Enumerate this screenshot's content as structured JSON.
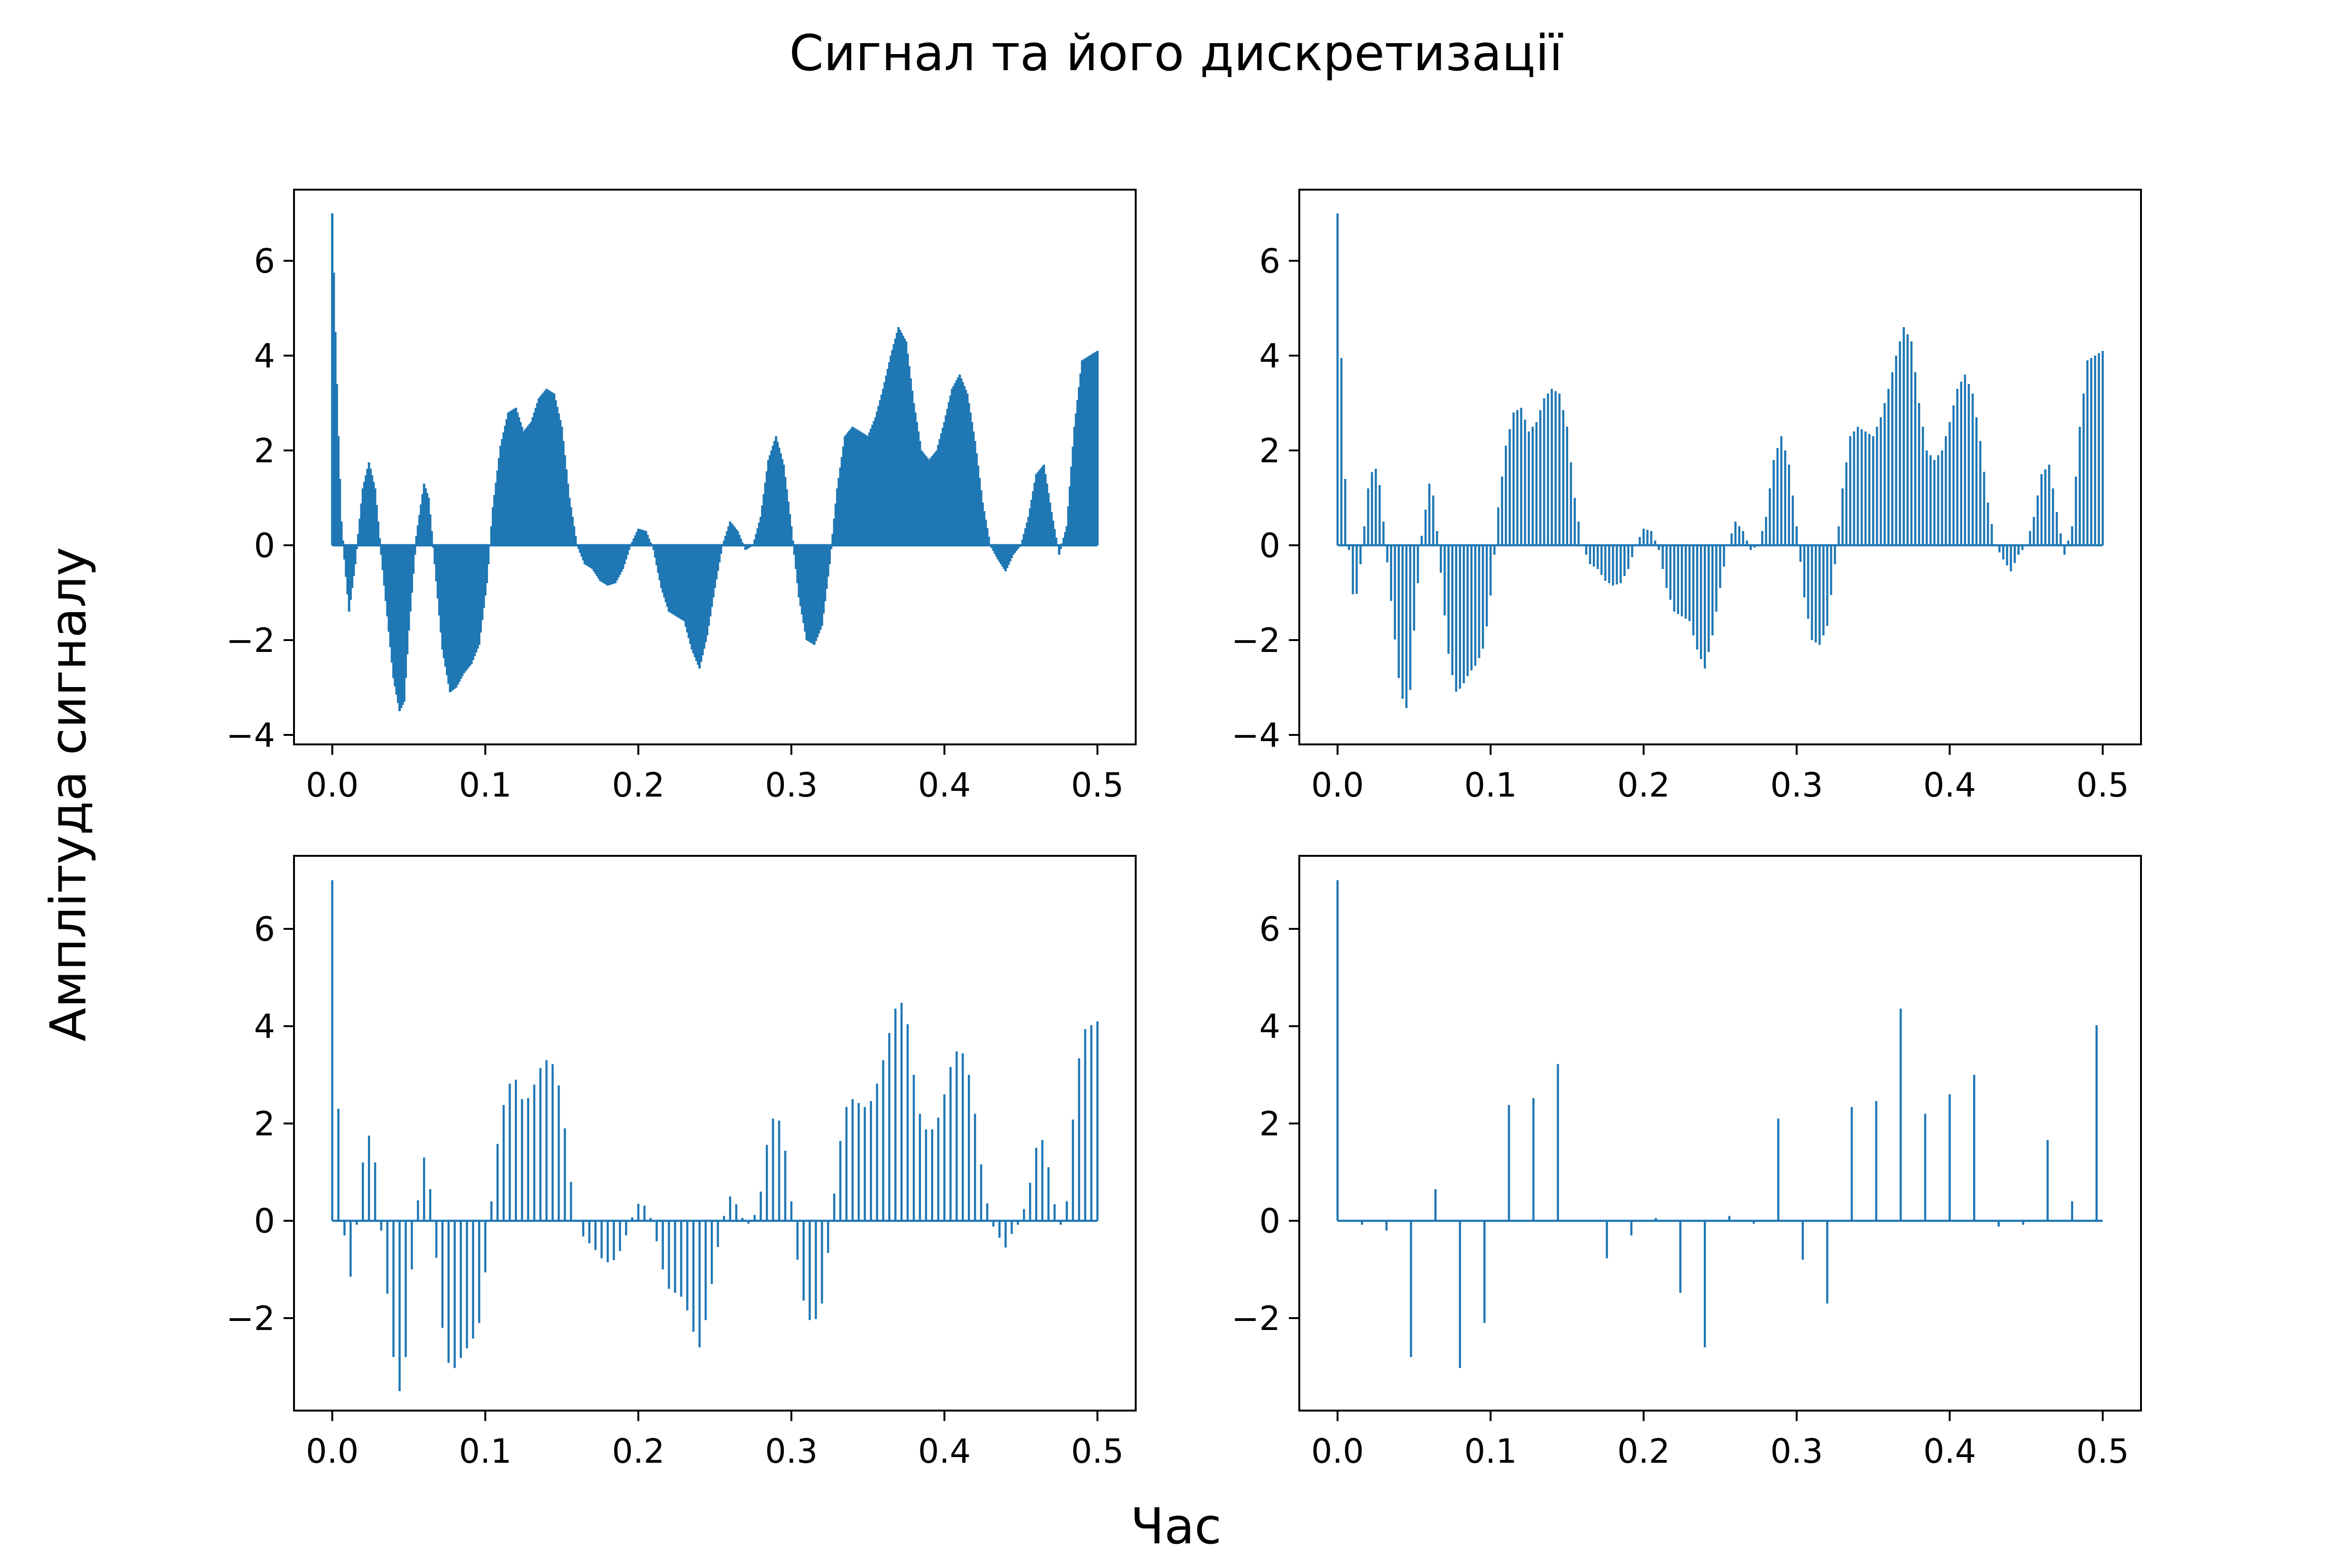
{
  "figure": {
    "title": "Сигнал та його дискретизації",
    "ylabel": "Амплітуда сигналу",
    "xlabel": "Час"
  },
  "colors": {
    "series": "#1f77b4",
    "axes": "#000000",
    "background": "#ffffff"
  },
  "chart_data": [
    {
      "type": "line",
      "panel": "top-left",
      "sampling_step": 0.001,
      "xlim": [
        -0.025,
        0.525
      ],
      "ylim": [
        -4.2,
        7.5
      ],
      "x_ticks": [
        0.0,
        0.1,
        0.2,
        0.3,
        0.4,
        0.5
      ],
      "x_tick_labels": [
        "0.0",
        "0.1",
        "0.2",
        "0.3",
        "0.4",
        "0.5"
      ],
      "y_ticks": [
        -4,
        -2,
        0,
        2,
        4,
        6
      ],
      "y_tick_labels": [
        "−4",
        "−2",
        "0",
        "2",
        "4",
        "6"
      ],
      "grid": false,
      "envelope": {
        "x": [
          0.0,
          0.002,
          0.004,
          0.006,
          0.008,
          0.011,
          0.015,
          0.02,
          0.024,
          0.028,
          0.032,
          0.036,
          0.04,
          0.044,
          0.047,
          0.05,
          0.055,
          0.06,
          0.063,
          0.067,
          0.072,
          0.077,
          0.081,
          0.086,
          0.091,
          0.096,
          0.101,
          0.105,
          0.11,
          0.115,
          0.12,
          0.125,
          0.13,
          0.135,
          0.14,
          0.145,
          0.15,
          0.155,
          0.16,
          0.165,
          0.17,
          0.175,
          0.18,
          0.185,
          0.19,
          0.195,
          0.2,
          0.205,
          0.21,
          0.215,
          0.22,
          0.225,
          0.23,
          0.235,
          0.24,
          0.245,
          0.25,
          0.255,
          0.26,
          0.265,
          0.27,
          0.275,
          0.28,
          0.285,
          0.29,
          0.295,
          0.3,
          0.305,
          0.31,
          0.315,
          0.32,
          0.325,
          0.33,
          0.335,
          0.34,
          0.345,
          0.35,
          0.355,
          0.36,
          0.365,
          0.37,
          0.375,
          0.38,
          0.385,
          0.39,
          0.395,
          0.4,
          0.405,
          0.41,
          0.415,
          0.42,
          0.425,
          0.43,
          0.435,
          0.44,
          0.445,
          0.45,
          0.455,
          0.46,
          0.465,
          0.47,
          0.475,
          0.48,
          0.485,
          0.49,
          0.495,
          0.5
        ],
        "y": [
          7.0,
          4.5,
          2.3,
          0.5,
          -0.3,
          -1.4,
          -0.4,
          1.2,
          1.75,
          1.2,
          -0.2,
          -1.5,
          -2.8,
          -3.5,
          -3.3,
          -1.8,
          0.2,
          1.3,
          1.0,
          -0.4,
          -2.2,
          -3.1,
          -3.0,
          -2.7,
          -2.5,
          -2.1,
          -0.8,
          0.8,
          2.1,
          2.8,
          2.9,
          2.4,
          2.6,
          3.1,
          3.3,
          3.2,
          2.5,
          1.0,
          0.0,
          -0.4,
          -0.5,
          -0.75,
          -0.85,
          -0.8,
          -0.5,
          0.0,
          0.35,
          0.3,
          -0.1,
          -0.9,
          -1.4,
          -1.5,
          -1.6,
          -2.2,
          -2.6,
          -1.9,
          -0.9,
          0.0,
          0.5,
          0.3,
          -0.1,
          0.0,
          0.6,
          1.8,
          2.3,
          1.7,
          0.4,
          -1.1,
          -2.0,
          -2.1,
          -1.7,
          -0.4,
          1.2,
          2.3,
          2.5,
          2.4,
          2.3,
          2.7,
          3.3,
          4.0,
          4.6,
          4.3,
          3.0,
          2.0,
          1.8,
          2.0,
          2.6,
          3.3,
          3.6,
          3.2,
          2.2,
          0.9,
          0.0,
          -0.3,
          -0.55,
          -0.2,
          0.0,
          0.6,
          1.5,
          1.7,
          0.7,
          -0.2,
          0.4,
          2.5,
          3.9,
          4.0,
          4.1
        ]
      }
    },
    {
      "type": "line",
      "panel": "top-right",
      "sampling_step": 0.0025,
      "xlim": [
        -0.025,
        0.525
      ],
      "ylim": [
        -4.2,
        7.5
      ],
      "x_ticks": [
        0.0,
        0.1,
        0.2,
        0.3,
        0.4,
        0.5
      ],
      "x_tick_labels": [
        "0.0",
        "0.1",
        "0.2",
        "0.3",
        "0.4",
        "0.5"
      ],
      "y_ticks": [
        -4,
        -2,
        0,
        2,
        4,
        6
      ],
      "y_tick_labels": [
        "−4",
        "−2",
        "0",
        "2",
        "4",
        "6"
      ],
      "grid": false
    },
    {
      "type": "line",
      "panel": "bottom-left",
      "sampling_step": 0.004,
      "xlim": [
        -0.025,
        0.525
      ],
      "ylim": [
        -3.9,
        7.5
      ],
      "x_ticks": [
        0.0,
        0.1,
        0.2,
        0.3,
        0.4,
        0.5
      ],
      "x_tick_labels": [
        "0.0",
        "0.1",
        "0.2",
        "0.3",
        "0.4",
        "0.5"
      ],
      "y_ticks": [
        -2,
        0,
        2,
        4,
        6
      ],
      "y_tick_labels": [
        "−2",
        "0",
        "2",
        "4",
        "6"
      ],
      "grid": false
    },
    {
      "type": "line",
      "panel": "bottom-right",
      "sampling_step": 0.016,
      "xlim": [
        -0.025,
        0.525
      ],
      "ylim": [
        -3.9,
        7.5
      ],
      "x_ticks": [
        0.0,
        0.1,
        0.2,
        0.3,
        0.4,
        0.5
      ],
      "x_tick_labels": [
        "0.0",
        "0.1",
        "0.2",
        "0.3",
        "0.4",
        "0.5"
      ],
      "y_ticks": [
        -2,
        0,
        2,
        4,
        6
      ],
      "y_tick_labels": [
        "−2",
        "0",
        "2",
        "4",
        "6"
      ],
      "grid": false
    }
  ]
}
